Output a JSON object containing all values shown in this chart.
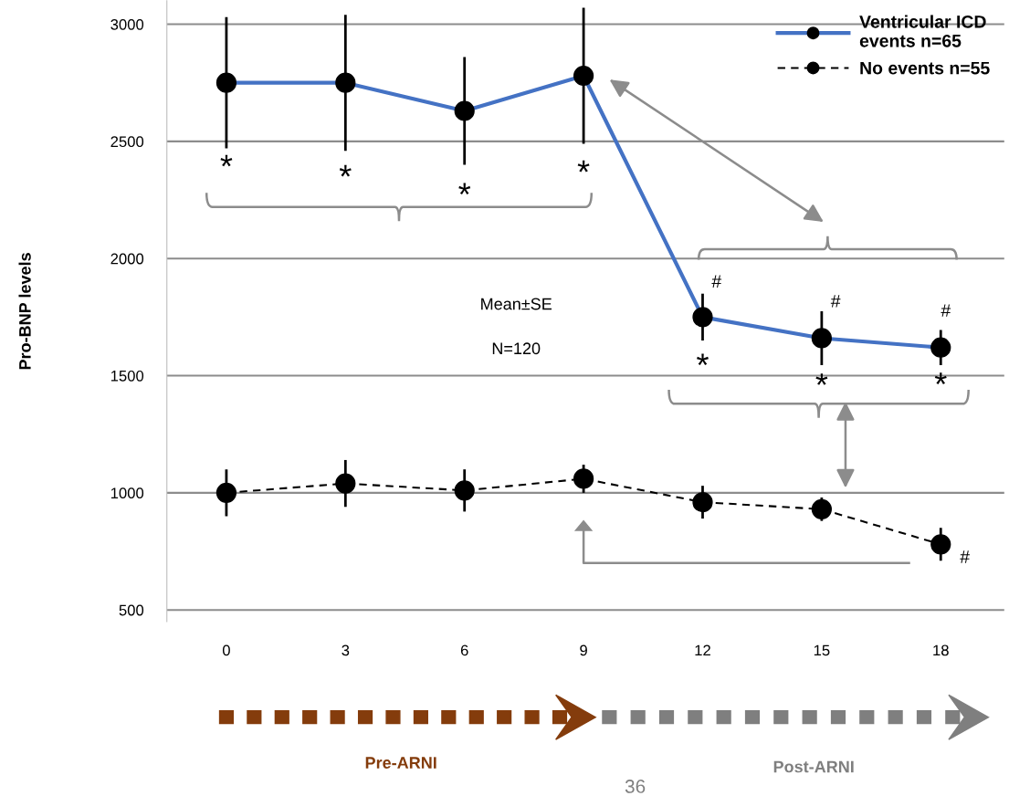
{
  "chart_data": {
    "type": "line",
    "ylabel": "Pro-BNP levels",
    "x": [
      0,
      3,
      6,
      9,
      12,
      15,
      18
    ],
    "series": [
      {
        "name": "Ventricular ICD\nevents n=65",
        "color": "#4472c4",
        "line_style": "solid",
        "values": [
          2750,
          2750,
          2630,
          2780,
          1750,
          1660,
          1620
        ],
        "errors": [
          280,
          290,
          230,
          290,
          100,
          115,
          75
        ]
      },
      {
        "name": "No events n=55",
        "color": "#000000",
        "line_style": "dashed",
        "values": [
          1000,
          1040,
          1010,
          1060,
          960,
          930,
          780
        ],
        "errors": [
          100,
          100,
          90,
          60,
          70,
          50,
          70
        ]
      }
    ],
    "marker": "circle",
    "xlim": [
      -1.5,
      19.6
    ],
    "ylim": [
      450,
      3100
    ],
    "xticks": [
      0,
      3,
      6,
      9,
      12,
      15,
      18
    ],
    "yticks": [
      500,
      1000,
      1500,
      2000,
      2500,
      3000
    ],
    "grid": "y",
    "legend": "top right",
    "annotations": [
      "Mean±SE",
      "N=120",
      "Pre-ARNI",
      "Post-ARNI",
      "36",
      {
        "text": "*",
        "x": 0,
        "y": 2750
      },
      {
        "text": "*",
        "x": 3,
        "y": 2750
      },
      {
        "text": "*",
        "x": 6,
        "y": 2630
      },
      {
        "text": "*",
        "x": 9,
        "y": 2780
      },
      {
        "text": "*",
        "x": 12,
        "y": 1750
      },
      {
        "text": "*",
        "x": 15,
        "y": 1660
      },
      {
        "text": "*",
        "x": 18,
        "y": 1620
      },
      {
        "text": "#",
        "x": 12,
        "y": 1750
      },
      {
        "text": "#",
        "x": 15,
        "y": 1660
      },
      {
        "text": "#",
        "x": 18,
        "y": 1620
      },
      {
        "text": "#",
        "x": 18,
        "y": 780
      }
    ]
  }
}
